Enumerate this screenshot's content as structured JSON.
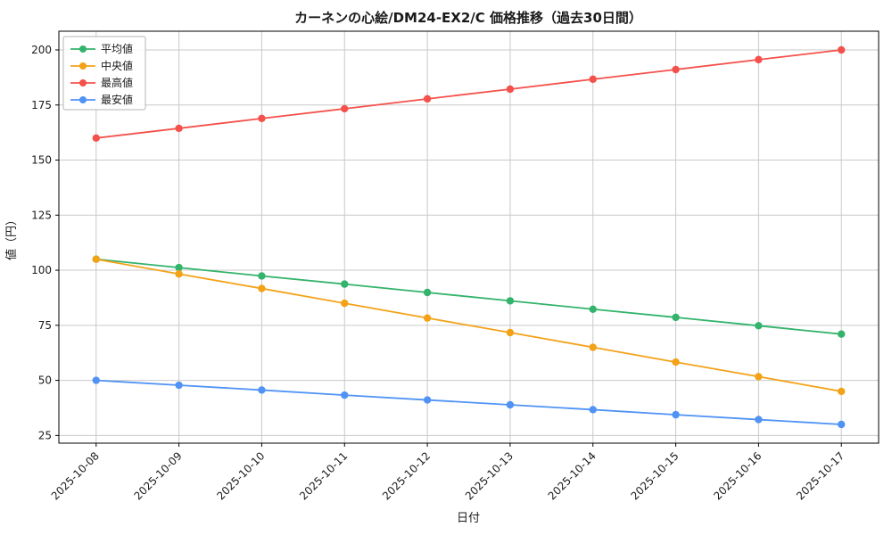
{
  "chart_data": {
    "type": "line",
    "title": "カーネンの心絵/DM24-EX2/C 価格推移（過去30日間）",
    "xlabel": "日付",
    "ylabel": "値（円）",
    "x": [
      "2025-10-08",
      "2025-10-09",
      "2025-10-10",
      "2025-10-11",
      "2025-10-12",
      "2025-10-13",
      "2025-10-14",
      "2025-10-15",
      "2025-10-16",
      "2025-10-17"
    ],
    "series": [
      {
        "name": "平均値",
        "color": "#33b36b",
        "values": [
          105,
          101.2,
          97.4,
          93.7,
          89.9,
          86.1,
          82.3,
          78.6,
          74.8,
          71
        ]
      },
      {
        "name": "中央値",
        "color": "#f3a218",
        "values": [
          105,
          98.3,
          91.7,
          85,
          78.3,
          71.7,
          65,
          58.3,
          51.7,
          45
        ]
      },
      {
        "name": "最高値",
        "color": "#f4514c",
        "values": [
          160,
          164.4,
          168.9,
          173.3,
          177.8,
          182.2,
          186.7,
          191.1,
          195.6,
          200
        ]
      },
      {
        "name": "最安値",
        "color": "#5093f5",
        "values": [
          50,
          47.8,
          45.6,
          43.3,
          41.1,
          38.9,
          36.7,
          34.4,
          32.2,
          30
        ]
      }
    ],
    "yticks": [
      25,
      50,
      75,
      100,
      125,
      150,
      175,
      200
    ],
    "ylim": [
      21.5,
      208.5
    ],
    "xlim": [
      -0.45,
      9.45
    ],
    "grid": true,
    "legend_position": "upper left",
    "grid_color": "#c9c9c9",
    "axis_color": "#000000"
  }
}
